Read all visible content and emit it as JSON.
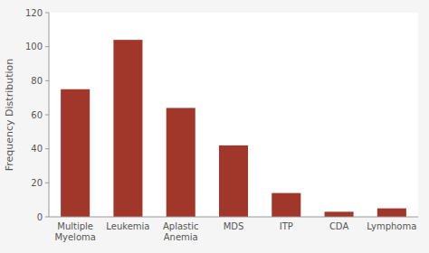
{
  "chart_data": {
    "type": "bar",
    "categories": [
      "Multiple\nMyeloma",
      "Leukemia",
      "Aplastic\nAnemia",
      "MDS",
      "ITP",
      "CDA",
      "Lymphoma"
    ],
    "values": [
      75,
      104,
      64,
      42,
      14,
      3,
      5
    ],
    "color": "#A0372A",
    "ylabel": "Frequency Distribution",
    "ylim": [
      0,
      120
    ],
    "yticks": [
      0,
      20,
      40,
      60,
      80,
      100,
      120
    ],
    "grid": false
  }
}
